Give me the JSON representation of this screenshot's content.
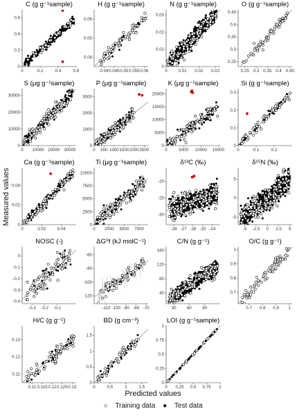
{
  "figure": {
    "y_axis_label": "Measured values",
    "x_axis_label": "Predicted values",
    "legend": {
      "training": "Training data",
      "test": "Test data"
    },
    "colors": {
      "line": "#8a8a8a",
      "outlier": "#cc0000",
      "point": "#000000"
    }
  },
  "chart_data": [
    {
      "type": "scatter",
      "title": "C (g g⁻¹sample)",
      "xlim": [
        0,
        0.6
      ],
      "ylim": [
        0,
        0.7
      ],
      "xticks": [
        0.0,
        0.2,
        0.4,
        0.6
      ],
      "yticks": [
        0.0,
        0.2,
        0.4,
        0.6
      ],
      "n_train": 40,
      "n_test": 220,
      "noise": 0.025,
      "x_range": [
        0.02,
        0.58
      ],
      "outliers": [
        [
          0.45,
          0.69
        ],
        [
          0.45,
          0.06
        ]
      ],
      "series": [
        {
          "name": "Training data"
        },
        {
          "name": "Test data"
        }
      ]
    },
    {
      "type": "scatter",
      "title": "H (g g⁻¹sample)",
      "xlim": [
        0.035,
        0.062
      ],
      "ylim": [
        0.035,
        0.065
      ],
      "xticks": [
        0.04,
        0.045,
        0.05,
        0.055,
        0.06
      ],
      "yticks": [
        0.04,
        0.05,
        0.06
      ],
      "n_train": 55,
      "n_test": 25,
      "noise": 0.0015,
      "x_range": [
        0.037,
        0.061
      ],
      "outliers": []
    },
    {
      "type": "scatter",
      "title": "N (g g⁻¹sample)",
      "xlim": [
        0,
        0.033
      ],
      "ylim": [
        0,
        0.033
      ],
      "xticks": [
        0.0,
        0.01,
        0.02,
        0.03
      ],
      "yticks": [
        0.0,
        0.01,
        0.02,
        0.03
      ],
      "n_train": 120,
      "n_test": 500,
      "noise": 0.0022,
      "x_range": [
        0.001,
        0.031
      ],
      "outliers": []
    },
    {
      "type": "scatter",
      "title": "O (g g⁻¹sample)",
      "xlim": [
        0.22,
        0.46
      ],
      "ylim": [
        0.23,
        0.46
      ],
      "xticks": [
        0.25,
        0.3,
        0.35,
        0.4,
        0.45
      ],
      "yticks": [
        0.25,
        0.3,
        0.35,
        0.4,
        0.45
      ],
      "n_train": 60,
      "n_test": 0,
      "noise": 0.01,
      "x_range": [
        0.24,
        0.45
      ],
      "outliers": []
    },
    {
      "type": "scatter",
      "title": "S (μg g⁻¹sample)",
      "xlim": [
        0,
        34000
      ],
      "ylim": [
        0,
        34000
      ],
      "xticks": [
        0,
        10000,
        20000,
        30000
      ],
      "yticks": [
        0,
        10000,
        20000,
        30000
      ],
      "n_train": 100,
      "n_test": 120,
      "noise": 2000,
      "x_range": [
        500,
        32000
      ],
      "outliers": []
    },
    {
      "type": "scatter",
      "title": "P (μg g⁻¹sample)",
      "xlim": [
        0,
        2700
      ],
      "ylim": [
        0,
        3500
      ],
      "xticks": [
        0,
        500,
        1000,
        1500,
        2000,
        2500
      ],
      "yticks": [
        0,
        1000,
        2000,
        3000
      ],
      "n_train": 90,
      "n_test": 110,
      "noise": 180,
      "x_range": [
        50,
        2000
      ],
      "outliers": [
        [
          2250,
          3150
        ],
        [
          2400,
          3100
        ]
      ]
    },
    {
      "type": "scatter",
      "title": "K (μg g⁻¹sample)",
      "xlim": [
        0,
        15500
      ],
      "ylim": [
        0,
        22000
      ],
      "xticks": [
        0,
        5000,
        10000,
        15000
      ],
      "yticks": [
        0,
        5000,
        10000,
        15000,
        20000
      ],
      "n_train": 70,
      "n_test": 80,
      "noise": 1400,
      "x_range": [
        200,
        14800
      ],
      "outliers": [
        [
          7200,
          20800
        ],
        [
          7400,
          21200
        ],
        [
          7600,
          20500
        ]
      ]
    },
    {
      "type": "scatter",
      "title": "Si (g g⁻¹sample)",
      "xlim": [
        0,
        0.3
      ],
      "ylim": [
        0,
        0.32
      ],
      "xticks": [
        0.0,
        0.1,
        0.2
      ],
      "yticks": [
        0.0,
        0.1,
        0.2,
        0.3
      ],
      "n_train": 60,
      "n_test": 30,
      "noise": 0.012,
      "x_range": [
        0.005,
        0.29
      ],
      "outliers": [
        [
          0.05,
          0.18
        ]
      ]
    },
    {
      "type": "scatter",
      "title": "Ca (g g⁻¹sample)",
      "xlim": [
        0,
        0.055
      ],
      "ylim": [
        0,
        0.058
      ],
      "xticks": [
        0.0,
        0.02,
        0.04
      ],
      "yticks": [
        0.0,
        0.02,
        0.04
      ],
      "n_train": 80,
      "n_test": 120,
      "noise": 0.0025,
      "x_range": [
        0.001,
        0.052
      ],
      "outliers": [
        [
          0.029,
          0.052
        ]
      ]
    },
    {
      "type": "scatter",
      "title": "Ti (μg g⁻¹sample)",
      "xlim": [
        0,
        9000
      ],
      "ylim": [
        0,
        11000
      ],
      "xticks": [
        0,
        2500,
        5000,
        7500
      ],
      "yticks": [
        0,
        2500,
        5000,
        7500,
        10000
      ],
      "n_train": 80,
      "n_test": 90,
      "noise": 700,
      "x_range": [
        100,
        8500
      ],
      "outliers": []
    },
    {
      "type": "scatter",
      "title": "δ¹³C (‰)",
      "xlim": [
        -28.8,
        -23.2
      ],
      "ylim": [
        -33,
        -16
      ],
      "xticks": [
        -28,
        -27,
        -26,
        -25,
        -24
      ],
      "yticks": [
        -30,
        -25,
        -20
      ],
      "n_train": 150,
      "n_test": 450,
      "noise": 1.6,
      "x_range": [
        -28.5,
        -23.5
      ],
      "outliers": [
        [
          -25.9,
          -18.5
        ],
        [
          -26.1,
          -18.8
        ]
      ]
    },
    {
      "type": "scatter",
      "title": "δ¹⁵N (‰)",
      "xlim": [
        -6.5,
        5.5
      ],
      "ylim": [
        -7,
        8
      ],
      "xticks": [
        -5.0,
        -2.5,
        0.0,
        2.5,
        5.0
      ],
      "yticks": [
        -5,
        0,
        5
      ],
      "n_train": 150,
      "n_test": 450,
      "noise": 1.6,
      "x_range": [
        -6,
        5
      ],
      "outliers": []
    },
    {
      "type": "scatter",
      "title": "NOSC (-)",
      "xlim": [
        -0.38,
        0.05
      ],
      "ylim": [
        -0.42,
        0.08
      ],
      "xticks": [
        -0.3,
        -0.2,
        -0.1
      ],
      "yticks": [
        -0.4,
        -0.3,
        -0.2,
        -0.1,
        0.0
      ],
      "n_train": 70,
      "n_test": 25,
      "noise": 0.05,
      "x_range": [
        -0.35,
        0.02
      ],
      "outliers": []
    },
    {
      "type": "scatter",
      "title": "ΔG⁰f (kJ molC⁻¹)",
      "xlim": [
        -122,
        -68
      ],
      "ylim": [
        -132,
        -48
      ],
      "xticks": [
        -110,
        -100,
        -90,
        -80,
        -70
      ],
      "yticks": [
        -120,
        -100,
        -80,
        -60
      ],
      "n_train": 60,
      "n_test": 25,
      "noise": 6,
      "x_range": [
        -118,
        -72
      ],
      "outliers": []
    },
    {
      "type": "scatter",
      "title": "C/N (g g⁻¹)",
      "xlim": [
        15,
        120
      ],
      "ylim": [
        10,
        170
      ],
      "xticks": [
        30,
        60,
        90
      ],
      "yticks": [
        40,
        80,
        120,
        160
      ],
      "n_train": 150,
      "n_test": 500,
      "noise": 11,
      "x_range": [
        20,
        115
      ],
      "outliers": []
    },
    {
      "type": "scatter",
      "title": "O/C (g g⁻¹)",
      "xlim": [
        0.62,
        1.02
      ],
      "ylim": [
        0.62,
        1.02
      ],
      "xticks": [
        0.7,
        0.8,
        0.9,
        1.0
      ],
      "yticks": [
        0.7,
        0.8,
        0.9,
        1.0
      ],
      "n_train": 70,
      "n_test": 0,
      "noise": 0.02,
      "x_range": [
        0.64,
        1.0
      ],
      "outliers": []
    },
    {
      "type": "scatter",
      "title": "H/C (g g⁻¹)",
      "xlim": [
        0.105,
        0.132
      ],
      "ylim": [
        0.105,
        0.138
      ],
      "xticks": [
        0.11,
        0.115,
        0.12,
        0.125,
        0.13
      ],
      "yticks": [
        0.11,
        0.12,
        0.13
      ],
      "n_train": 70,
      "n_test": 25,
      "noise": 0.0022,
      "x_range": [
        0.107,
        0.131
      ],
      "outliers": []
    },
    {
      "type": "scatter",
      "title": "BD (g cm⁻³)",
      "xlim": [
        0,
        1.7
      ],
      "ylim": [
        0,
        1.8
      ],
      "xticks": [
        0.0,
        0.5,
        1.0,
        1.5
      ],
      "yticks": [
        0.0,
        0.5,
        1.0,
        1.5
      ],
      "n_train": 45,
      "n_test": 30,
      "noise": 0.08,
      "x_range": [
        0.05,
        1.4
      ],
      "outliers": []
    },
    {
      "type": "scatter",
      "title": "LOI (g g⁻¹sample)",
      "xlim": [
        0,
        1.0
      ],
      "ylim": [
        0,
        1.0
      ],
      "xticks": [
        0.0,
        0.25,
        0.5,
        0.75,
        1.0
      ],
      "yticks": [
        0.0,
        0.25,
        0.5,
        0.75,
        1.0
      ],
      "n_train": 20,
      "n_test": 60,
      "noise": 0.006,
      "x_range": [
        0.03,
        0.97
      ],
      "outliers": []
    }
  ]
}
